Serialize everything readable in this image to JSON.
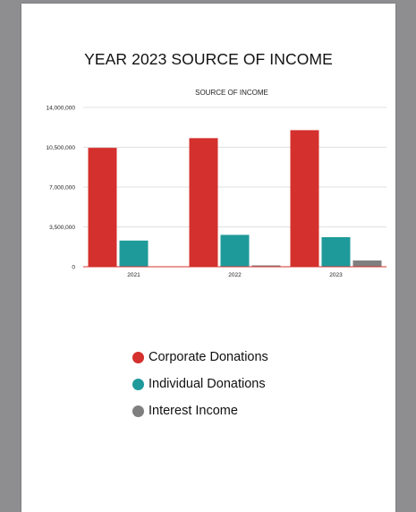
{
  "page": {
    "title": "YEAR 2023 SOURCE OF INCOME"
  },
  "chart_data": {
    "type": "bar",
    "title": "SOURCE OF INCOME",
    "categories": [
      "2021",
      "2022",
      "2023"
    ],
    "series": [
      {
        "name": "Corporate Donations",
        "color": "#d4302d",
        "values": [
          10450000,
          11300000,
          12000000
        ]
      },
      {
        "name": "Individual Donations",
        "color": "#1f9a9a",
        "values": [
          2300000,
          2800000,
          2600000
        ]
      },
      {
        "name": "Interest Income",
        "color": "#7f7f7f",
        "values": [
          0,
          100000,
          550000
        ]
      }
    ],
    "ylim": [
      0,
      14000000
    ],
    "yticks": [
      0,
      3500000,
      7000000,
      10500000,
      14000000
    ],
    "ytick_labels": [
      "0",
      "3,500,000",
      "7,000,000",
      "10,500,000",
      "14,000,000"
    ],
    "grid": true,
    "legend_position": "bottom"
  }
}
